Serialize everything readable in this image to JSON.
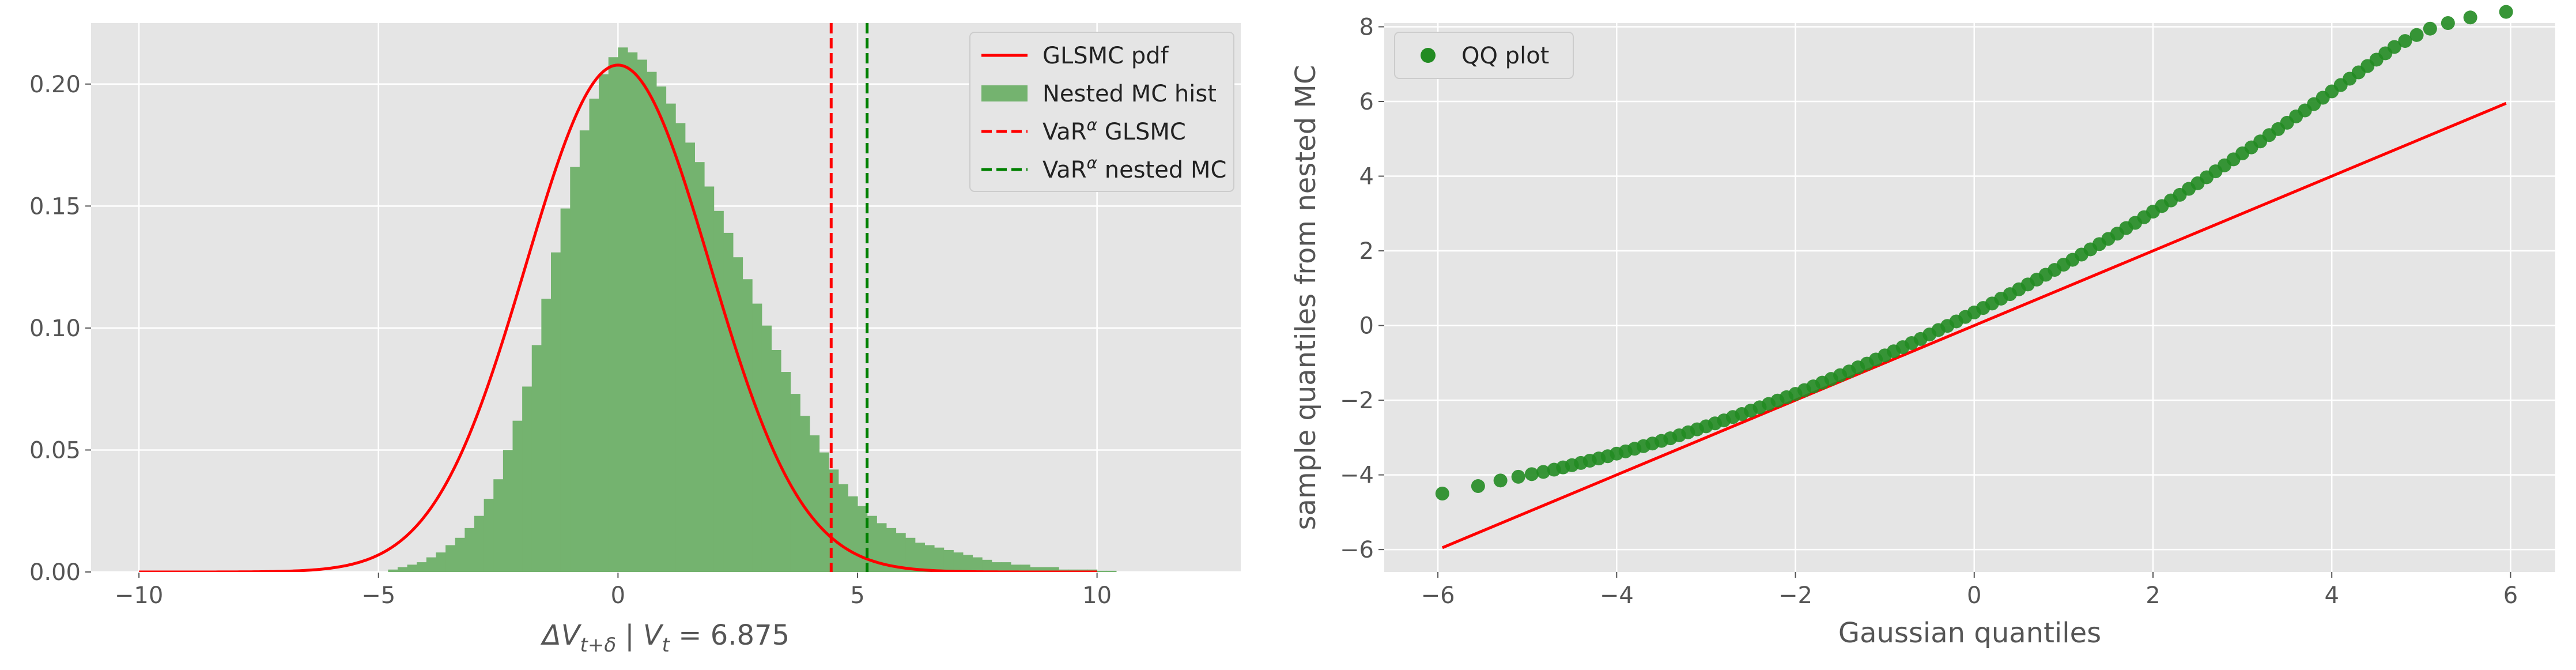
{
  "chart_data": [
    {
      "type": "histogram+line",
      "xlabel_parts": [
        "ΔV",
        "t+δ",
        " | V",
        "t",
        " = 6.875"
      ],
      "ylabel": "",
      "xlim": [
        -11,
        13
      ],
      "ylim": [
        0,
        0.225
      ],
      "xticks": [
        -10,
        -5,
        0,
        5,
        10
      ],
      "xtick_labels": [
        "−10",
        "−5",
        "0",
        "5",
        "10"
      ],
      "yticks": [
        0,
        0.05,
        0.1,
        0.15,
        0.2
      ],
      "ytick_labels": [
        "0.00",
        "0.05",
        "0.10",
        "0.15",
        "0.20"
      ],
      "grid": true,
      "legend_position": "top-right",
      "legend_entries": [
        {
          "name": "GLSMC pdf",
          "kind": "line",
          "color": "#ff0000"
        },
        {
          "name": "Nested MC hist",
          "kind": "patch",
          "color": "#74b36f"
        },
        {
          "name": "VaR",
          "sup": "α",
          "suffix": " GLSMC",
          "kind": "dashed",
          "color": "#ff0000"
        },
        {
          "name": "VaR",
          "sup": "α",
          "suffix": " nested MC",
          "kind": "dashed",
          "color": "#008000"
        }
      ],
      "pdf": {
        "name": "GLSMC pdf",
        "mean": 0.0,
        "std": 1.92,
        "x_range": [
          -10,
          10
        ],
        "color": "#ff0000"
      },
      "histogram": {
        "name": "Nested MC hist",
        "color": "#74b36f",
        "bin_start": -4.8,
        "bin_width": 0.2,
        "values": [
          0.001,
          0.002,
          0.003,
          0.004,
          0.006,
          0.008,
          0.011,
          0.014,
          0.018,
          0.023,
          0.03,
          0.038,
          0.05,
          0.062,
          0.076,
          0.093,
          0.112,
          0.131,
          0.149,
          0.166,
          0.181,
          0.194,
          0.204,
          0.211,
          0.215,
          0.213,
          0.21,
          0.205,
          0.199,
          0.192,
          0.184,
          0.176,
          0.168,
          0.158,
          0.148,
          0.139,
          0.129,
          0.12,
          0.11,
          0.101,
          0.091,
          0.082,
          0.073,
          0.064,
          0.056,
          0.049,
          0.042,
          0.036,
          0.031,
          0.027,
          0.023,
          0.02,
          0.018,
          0.016,
          0.014,
          0.012,
          0.011,
          0.01,
          0.009,
          0.008,
          0.007,
          0.006,
          0.005,
          0.004,
          0.004,
          0.003,
          0.003,
          0.002,
          0.002,
          0.002,
          0.001,
          0.001,
          0.001,
          0.001,
          0.0005,
          0.0005
        ]
      },
      "vlines": [
        {
          "name": "VaR GLSMC",
          "x": 4.45,
          "color": "#ff0000"
        },
        {
          "name": "VaR nested MC",
          "x": 5.2,
          "color": "#008000"
        }
      ]
    },
    {
      "type": "scatter+line",
      "xlabel": "Gaussian quantiles",
      "ylabel": "sample quantiles from nested MC",
      "xlim": [
        -6.6,
        6.5
      ],
      "ylim": [
        -6.6,
        8.1
      ],
      "xticks": [
        -6,
        -4,
        -2,
        0,
        2,
        4,
        6
      ],
      "xtick_labels": [
        "−6",
        "−4",
        "−2",
        "0",
        "2",
        "4",
        "6"
      ],
      "yticks": [
        -6,
        -4,
        -2,
        0,
        2,
        4,
        6,
        8
      ],
      "ytick_labels": [
        "−6",
        "−4",
        "−2",
        "0",
        "2",
        "4",
        "6",
        "8"
      ],
      "grid": true,
      "legend_position": "top-left",
      "legend_entries": [
        {
          "name": "QQ plot",
          "kind": "marker",
          "color": "#228b22"
        }
      ],
      "reference_line": {
        "x": [
          -5.95,
          5.95
        ],
        "y": [
          -5.95,
          5.95
        ],
        "color": "#ff0000"
      },
      "scatter": {
        "name": "QQ plot",
        "color": "#228b22",
        "x": [
          -5.95,
          -5.55,
          -5.3,
          -5.1,
          -4.95,
          -4.82,
          -4.7,
          -4.6,
          -4.5,
          -4.4,
          -4.3,
          -4.2,
          -4.1,
          -4.0,
          -3.9,
          -3.8,
          -3.7,
          -3.6,
          -3.5,
          -3.4,
          -3.3,
          -3.2,
          -3.1,
          -3.0,
          -2.9,
          -2.8,
          -2.7,
          -2.6,
          -2.5,
          -2.4,
          -2.3,
          -2.2,
          -2.1,
          -2.0,
          -1.9,
          -1.8,
          -1.7,
          -1.6,
          -1.5,
          -1.4,
          -1.3,
          -1.2,
          -1.1,
          -1.0,
          -0.9,
          -0.8,
          -0.7,
          -0.6,
          -0.5,
          -0.4,
          -0.3,
          -0.2,
          -0.1,
          0.0,
          0.1,
          0.2,
          0.3,
          0.4,
          0.5,
          0.6,
          0.7,
          0.8,
          0.9,
          1.0,
          1.1,
          1.2,
          1.3,
          1.4,
          1.5,
          1.6,
          1.7,
          1.8,
          1.9,
          2.0,
          2.1,
          2.2,
          2.3,
          2.4,
          2.5,
          2.6,
          2.7,
          2.8,
          2.9,
          3.0,
          3.1,
          3.2,
          3.3,
          3.4,
          3.5,
          3.6,
          3.7,
          3.8,
          3.9,
          4.0,
          4.1,
          4.2,
          4.3,
          4.4,
          4.5,
          4.6,
          4.7,
          4.82,
          4.95,
          5.1,
          5.3,
          5.55,
          5.95
        ],
        "y": [
          -4.5,
          -4.3,
          -4.15,
          -4.05,
          -3.98,
          -3.92,
          -3.86,
          -3.8,
          -3.74,
          -3.68,
          -3.62,
          -3.56,
          -3.5,
          -3.43,
          -3.37,
          -3.3,
          -3.23,
          -3.16,
          -3.09,
          -3.02,
          -2.94,
          -2.86,
          -2.78,
          -2.7,
          -2.62,
          -2.54,
          -2.45,
          -2.37,
          -2.28,
          -2.19,
          -2.1,
          -2.01,
          -1.92,
          -1.83,
          -1.73,
          -1.63,
          -1.53,
          -1.43,
          -1.33,
          -1.23,
          -1.12,
          -1.02,
          -0.91,
          -0.8,
          -0.69,
          -0.58,
          -0.47,
          -0.36,
          -0.24,
          -0.12,
          -0.01,
          0.11,
          0.23,
          0.35,
          0.47,
          0.59,
          0.72,
          0.84,
          0.97,
          1.1,
          1.23,
          1.36,
          1.49,
          1.63,
          1.76,
          1.9,
          2.04,
          2.18,
          2.32,
          2.46,
          2.61,
          2.75,
          2.9,
          3.05,
          3.2,
          3.35,
          3.5,
          3.66,
          3.81,
          3.97,
          4.13,
          4.29,
          4.45,
          4.61,
          4.77,
          4.93,
          5.1,
          5.26,
          5.43,
          5.6,
          5.76,
          5.93,
          6.1,
          6.27,
          6.44,
          6.61,
          6.78,
          6.95,
          7.12,
          7.29,
          7.46,
          7.62,
          7.78,
          7.95,
          8.1,
          8.25,
          8.4
        ]
      }
    }
  ]
}
